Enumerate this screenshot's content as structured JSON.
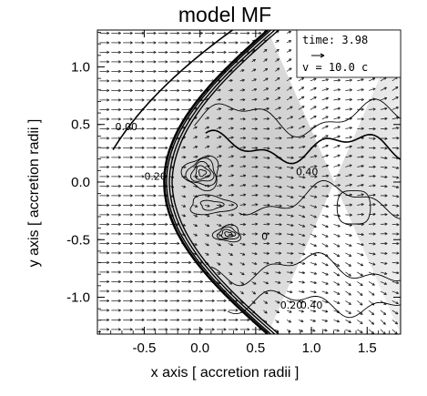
{
  "chart_data": {
    "type": "contour-vector",
    "title": "model MF",
    "xlabel": "x axis [ accretion radii ]",
    "ylabel": "y axis [ accretion radii ]",
    "xlim": [
      -0.92,
      1.8
    ],
    "ylim": [
      -1.32,
      1.32
    ],
    "xticks": [
      -0.5,
      0.0,
      0.5,
      1.0,
      1.5
    ],
    "yticks": [
      -1.0,
      -0.5,
      0.0,
      0.5,
      1.0
    ],
    "xtick_labels": [
      "-0.5",
      "0.0",
      "0.5",
      "1.0",
      "1.5"
    ],
    "ytick_labels": [
      "-1.0",
      "-0.5",
      "0.0",
      "0.5",
      "1.0"
    ],
    "legend": {
      "time_label": "time: 3.98",
      "velocity_label": "v = 10.0 c",
      "placement": "top-right"
    },
    "contour_labels": [
      {
        "text": "0.00",
        "x": -0.66,
        "y": 0.45
      },
      {
        "text": "0.20",
        "x": -0.4,
        "y": 0.02
      },
      {
        "text": "0.40",
        "x": 0.96,
        "y": 0.06
      },
      {
        "text": "0",
        "x": 0.58,
        "y": -0.5
      },
      {
        "text": "0.20",
        "x": 0.82,
        "y": -1.1
      },
      {
        "text": "0.40",
        "x": 1.0,
        "y": -1.1
      }
    ]
  }
}
